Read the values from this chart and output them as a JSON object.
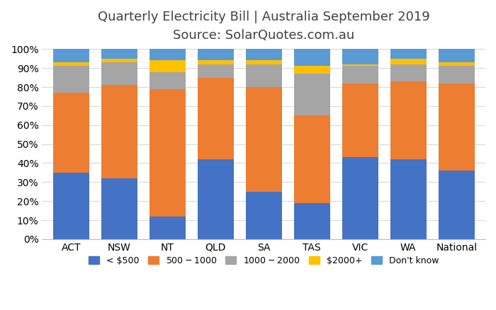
{
  "title": "Quarterly Electricity Bill | Australia September 2019",
  "subtitle": "Source: SolarQuotes.com.au",
  "categories": [
    "ACT",
    "NSW",
    "NT",
    "QLD",
    "SA",
    "TAS",
    "VIC",
    "WA",
    "National"
  ],
  "series": {
    "< $500": [
      35,
      32,
      12,
      42,
      25,
      19,
      43,
      42,
      36
    ],
    "$500 - $1000": [
      42,
      49,
      67,
      43,
      55,
      46,
      39,
      41,
      46
    ],
    "$1000- $2000": [
      14,
      12,
      9,
      7,
      12,
      22,
      9,
      9,
      9
    ],
    "$2000+": [
      2,
      2,
      6,
      2,
      2,
      4,
      1,
      3,
      2
    ],
    "Don't know": [
      7,
      5,
      6,
      6,
      6,
      9,
      8,
      5,
      7
    ]
  },
  "colors": {
    "< $500": "#4472C4",
    "$500 - $1000": "#ED7D31",
    "$1000- $2000": "#A5A5A5",
    "$2000+": "#FFC000",
    "Don't know": "#5B9BD5"
  },
  "series_order": [
    "< $500",
    "$500 - $1000",
    "$1000- $2000",
    "$2000+",
    "Don't know"
  ],
  "bar_width": 0.75,
  "ylim": [
    0,
    100
  ],
  "yticks": [
    0,
    10,
    20,
    30,
    40,
    50,
    60,
    70,
    80,
    90,
    100
  ],
  "ytick_labels": [
    "0%",
    "10%",
    "20%",
    "30%",
    "40%",
    "50%",
    "60%",
    "70%",
    "80%",
    "90%",
    "100%"
  ],
  "background_color": "#FFFFFF",
  "grid_color": "#D9D9D9",
  "title_fontsize": 13,
  "subtitle_fontsize": 11,
  "axis_fontsize": 10,
  "legend_fontsize": 9,
  "title_color": "#404040",
  "subtitle_color": "#404040"
}
